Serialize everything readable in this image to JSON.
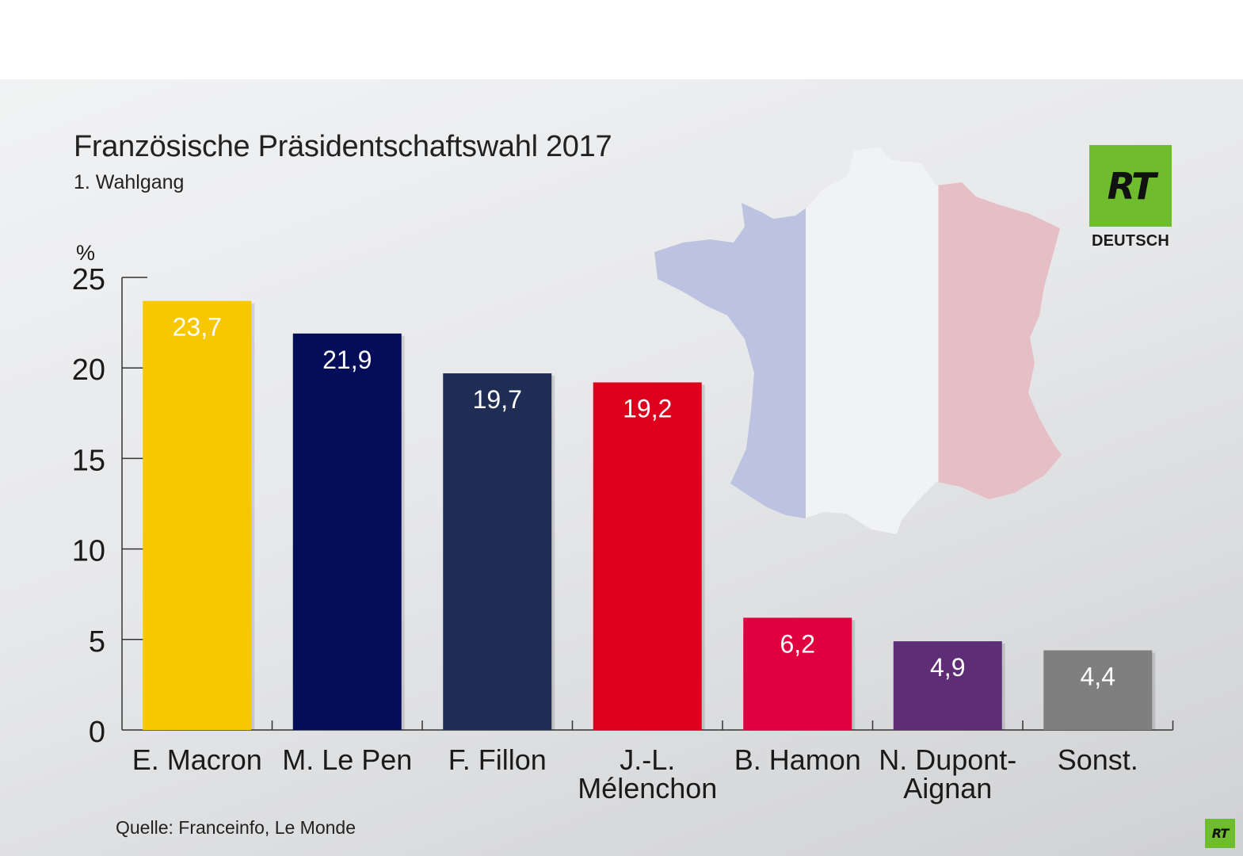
{
  "header": {
    "title": "Französische Präsidentschaftswahl 2017",
    "subtitle": "1. Wahlgang"
  },
  "brand": {
    "logo_text": "RT",
    "logo_label": "DEUTSCH",
    "logo_color": "#6fbd2e",
    "small_logo_text": "RT"
  },
  "footer": {
    "source": "Quelle: Franceinfo, Le Monde"
  },
  "decoration": {
    "map_icon": "france-flag-map-icon",
    "flag_colors": [
      "#bcc3e0",
      "#f1f2f4",
      "#e6bfc6"
    ]
  },
  "chart_data": {
    "type": "bar",
    "title": "Französische Präsidentschaftswahl 2017",
    "subtitle": "1. Wahlgang",
    "ylabel": "%",
    "xlabel": "",
    "ylim": [
      0,
      25
    ],
    "yticks": [
      "0",
      "5",
      "10",
      "15",
      "20",
      "25"
    ],
    "grid": false,
    "legend": "none",
    "categories": [
      [
        "E. Macron"
      ],
      [
        "M. Le Pen"
      ],
      [
        "F. Fillon"
      ],
      [
        "J.-L.",
        "Mélenchon"
      ],
      [
        "B. Hamon"
      ],
      [
        "N. Dupont-",
        "Aignan"
      ],
      [
        "Sonst."
      ]
    ],
    "values": [
      23.7,
      21.9,
      19.7,
      19.2,
      6.2,
      4.9,
      4.4
    ],
    "value_labels": [
      "23,7",
      "21,9",
      "19,7",
      "19,2",
      "6,2",
      "4,9",
      "4,4"
    ],
    "colors": [
      "#f7c800",
      "#050d58",
      "#1f2d54",
      "#dc001d",
      "#e0003f",
      "#5e2d76",
      "#7f7f7f"
    ]
  }
}
